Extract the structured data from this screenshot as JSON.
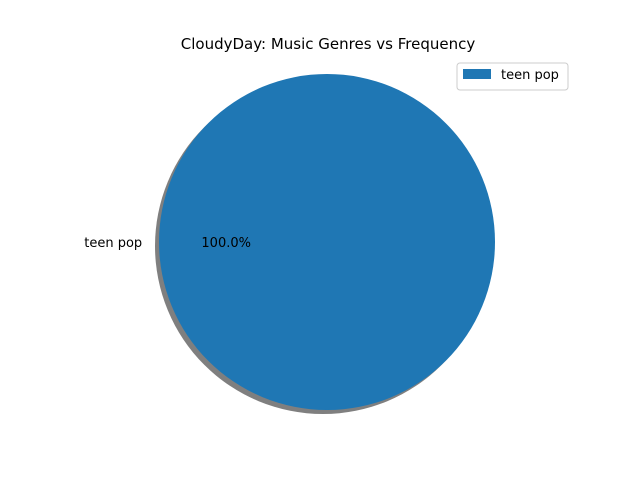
{
  "chart_data": {
    "type": "pie",
    "title": "CloudyDay: Music Genres vs Frequency",
    "slices": [
      {
        "label": "teen pop",
        "value": 100.0,
        "pct_label": "100.0%"
      }
    ],
    "colors": [
      "#1f77b4"
    ],
    "shadow": true,
    "legend": {
      "placement": "top-right",
      "entries": [
        "teen pop"
      ]
    }
  }
}
